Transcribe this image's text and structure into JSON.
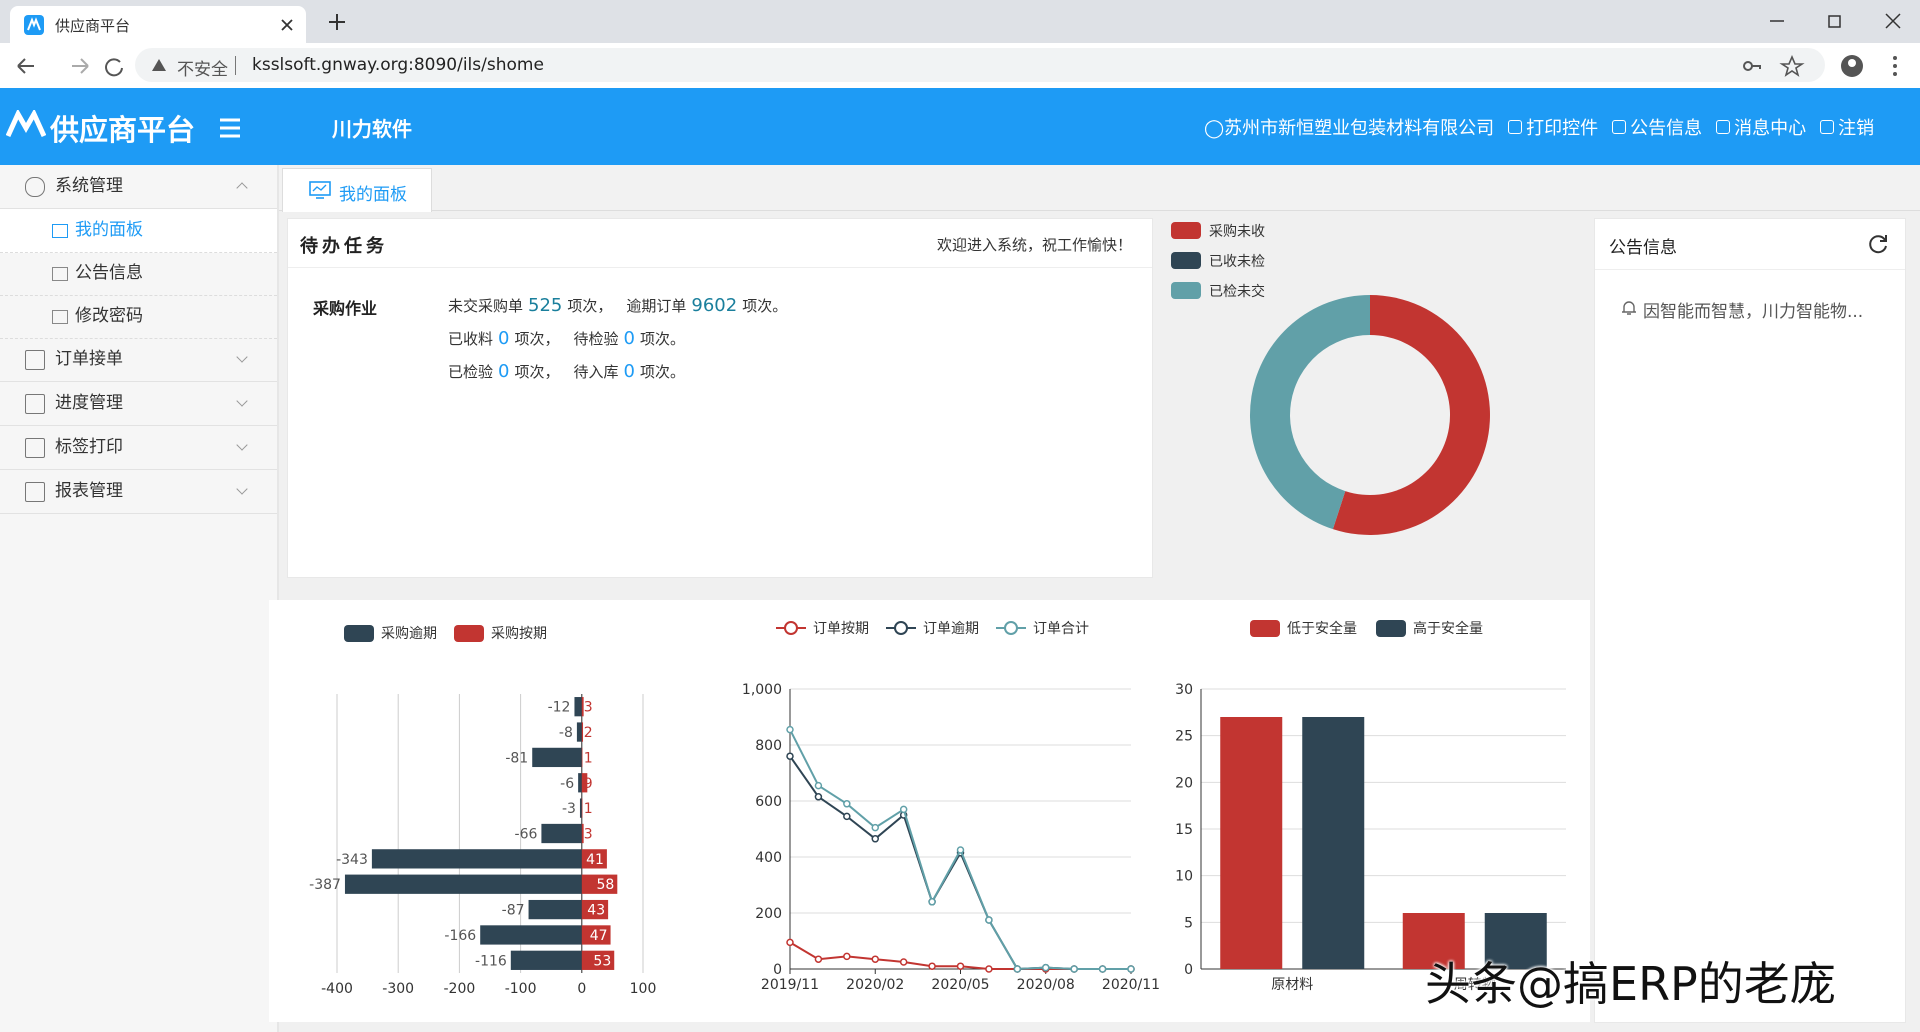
{
  "browser": {
    "tab_title": "供应商平台",
    "security": "不安全",
    "url": "ksslsoft.gnway.org:8090/ils/shome"
  },
  "header": {
    "logo": "供应商平台",
    "company_tab": "川力软件",
    "user": "苏州市新恒塑业包装材料有限公司",
    "links": [
      "打印控件",
      "公告信息",
      "消息中心",
      "注销"
    ]
  },
  "sidebar": {
    "groups": [
      {
        "label": "系统管理",
        "items": [
          "我的面板",
          "公告信息",
          "修改密码"
        ]
      },
      {
        "label": "订单接单"
      },
      {
        "label": "进度管理"
      },
      {
        "label": "标签打印"
      },
      {
        "label": "报表管理"
      }
    ]
  },
  "tabs": [
    "我的面板"
  ],
  "todo": {
    "title": "待办任务",
    "welcome": "欢迎进入系统，祝工作愉快！",
    "section": "采购作业",
    "lines": [
      [
        {
          "label": "未交采购单",
          "count": 525,
          "unit": "项次，"
        },
        {
          "label": "逾期订单",
          "count": 9602,
          "unit": "项次。"
        }
      ],
      [
        {
          "label": "已收料",
          "count": 0,
          "unit": "项次，"
        },
        {
          "label": "待检验",
          "count": 0,
          "unit": "项次。"
        }
      ],
      [
        {
          "label": "已检验",
          "count": 0,
          "unit": "项次，"
        },
        {
          "label": "待入库",
          "count": 0,
          "unit": "项次。"
        }
      ]
    ]
  },
  "notice": {
    "title": "公告信息",
    "items": [
      "因智能而智慧，川力智能物..."
    ]
  },
  "watermark": "头条@搞ERP的老庞",
  "chart_data": [
    {
      "type": "pie",
      "categories": [
        "采购未收",
        "已收未检",
        "已检未交"
      ],
      "values": [
        55,
        0,
        45
      ],
      "colors": [
        "#c23531",
        "#2f4554",
        "#61a0a8"
      ]
    },
    {
      "type": "hbar",
      "categories": [
        null,
        null,
        null,
        null,
        null,
        null,
        null,
        null,
        null,
        null,
        null
      ],
      "series": [
        {
          "name": "采购逾期",
          "color": "#2f4554",
          "values": [
            -12,
            -8,
            -81,
            -6,
            -3,
            -66,
            -343,
            -387,
            -87,
            -166,
            -116
          ]
        },
        {
          "name": "采购按期",
          "color": "#c23531",
          "values": [
            3,
            2,
            1,
            9,
            1,
            3,
            41,
            58,
            43,
            47,
            53
          ]
        }
      ],
      "xlim": [
        -400,
        100
      ],
      "xticks": [
        -400,
        -300,
        -200,
        -100,
        0,
        100
      ],
      "grid": true
    },
    {
      "type": "line",
      "categories": [
        "2019/11",
        null,
        null,
        "2020/02",
        null,
        null,
        "2020/05",
        null,
        null,
        "2020/08",
        null,
        null,
        "2020/11"
      ],
      "series": [
        {
          "name": "订单按期",
          "color": "#c23531",
          "values": [
            95,
            35,
            45,
            35,
            25,
            10,
            10,
            0,
            0,
            0,
            0,
            0,
            0
          ]
        },
        {
          "name": "订单逾期",
          "color": "#2f4554",
          "values": [
            760,
            615,
            545,
            465,
            550,
            240,
            415,
            175,
            0,
            5,
            0,
            0,
            0
          ]
        },
        {
          "name": "订单合计",
          "color": "#61a0a8",
          "values": [
            855,
            655,
            590,
            505,
            570,
            240,
            425,
            175,
            0,
            5,
            0,
            0,
            0
          ]
        }
      ],
      "ylim": [
        0,
        1000
      ],
      "yticks": [
        0,
        200,
        400,
        600,
        800,
        {
          "value": 1000,
          "label": "1,000"
        }
      ],
      "grid": true
    },
    {
      "type": "bar",
      "categories": [
        "原材料",
        "周转物"
      ],
      "series": [
        {
          "name": "低于安全量",
          "color": "#c23531",
          "values": [
            27,
            6
          ]
        },
        {
          "name": "高于安全量",
          "color": "#2f4554",
          "values": [
            27,
            6
          ]
        }
      ],
      "ylim": [
        0,
        30
      ],
      "yticks": [
        0,
        5,
        10,
        15,
        20,
        25,
        30
      ],
      "grid": true
    }
  ]
}
